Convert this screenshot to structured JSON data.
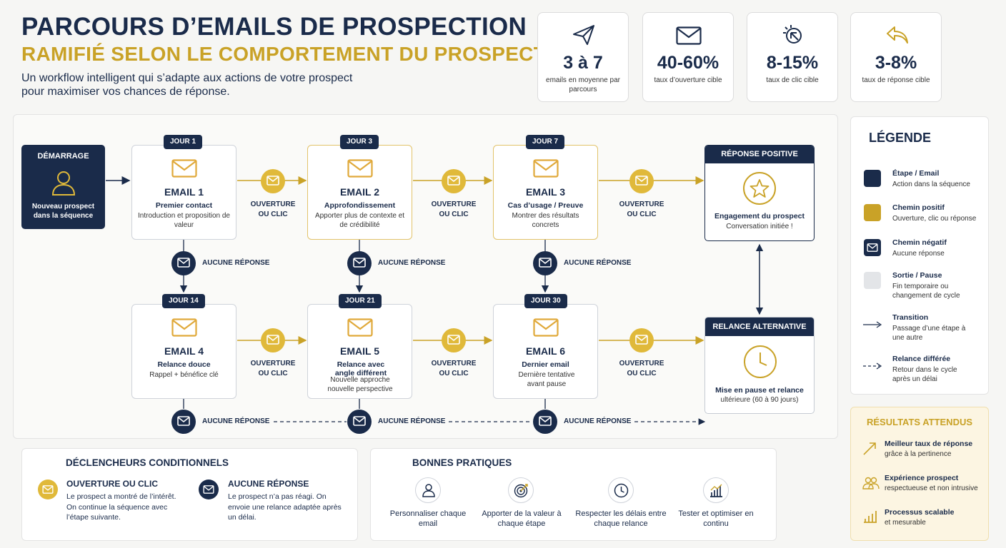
{
  "header": {
    "title_line1": "PARCOURS D’EMAILS DE PROSPECTION",
    "title_line2": "RAMIFIÉ SELON LE COMPORTEMENT DU PROSPECT",
    "subtitle": "Un workflow intelligent qui s’adapte aux actions de votre prospect pour maximiser vos chances de réponse."
  },
  "stats": [
    {
      "icon": "paper-plane-icon",
      "value": "3 à 7",
      "label": "emails en moyenne par parcours"
    },
    {
      "icon": "envelope-icon",
      "value": "40-60%",
      "label": "taux d’ouverture cible"
    },
    {
      "icon": "click-icon",
      "value": "8-15%",
      "label": "taux de clic cible"
    },
    {
      "icon": "reply-icon",
      "value": "3-8%",
      "label": "taux de réponse cible"
    }
  ],
  "start": {
    "label": "DÉMARRAGE",
    "desc": "Nouveau prospect dans la séquence"
  },
  "emails": [
    {
      "day": "JOUR 1",
      "title": "EMAIL 1",
      "subject": "Premier contact",
      "desc": "Introduction et proposition de valeur"
    },
    {
      "day": "JOUR 3",
      "title": "EMAIL 2",
      "subject": "Approfondissement",
      "desc": "Apporter plus de contexte et de crédibilité"
    },
    {
      "day": "JOUR 7",
      "title": "EMAIL 3",
      "subject": "Cas d’usage / Preuve",
      "desc": "Montrer des résultats concrets"
    },
    {
      "day": "JOUR 14",
      "title": "EMAIL 4",
      "subject": "Relance douce",
      "desc": "Rappel + bénéfice clé"
    },
    {
      "day": "JOUR 21",
      "title": "EMAIL 5",
      "subject": "Relance avec angle différent",
      "desc": "Nouvelle approche nouvelle perspective"
    },
    {
      "day": "JOUR 30",
      "title": "EMAIL 6",
      "subject": "Dernier email",
      "desc": "Dernière tentative avant pause"
    }
  ],
  "edge_labels": {
    "open": "OUVERTURE OU CLIC",
    "no_reply": "AUCUNE RÉPONSE"
  },
  "outcomes": {
    "positive": {
      "header": "RÉPONSE POSITIVE",
      "title": "Engagement du prospect",
      "desc": "Conversation initiée !"
    },
    "alternative": {
      "header": "RELANCE ALTERNATIVE",
      "title": "Mise en pause et relance",
      "desc": "ultérieure (60 à 90 jours)"
    }
  },
  "legend": {
    "title": "LÉGENDE",
    "items": [
      {
        "title": "Étape / Email",
        "desc": "Action dans la séquence",
        "color": "#1a2b4a"
      },
      {
        "title": "Chemin positif",
        "desc": "Ouverture, clic ou réponse",
        "color": "#c9a227"
      },
      {
        "title": "Chemin négatif",
        "desc": "Aucune réponse",
        "color": "#1a2b4a"
      },
      {
        "title": "Sortie / Pause",
        "desc": "Fin temporaire ou changement de cycle",
        "color": "#e3e5e8"
      },
      {
        "title": "Transition",
        "desc": "Passage d’une étape à une autre"
      },
      {
        "title": "Relance différée",
        "desc": "Retour dans le cycle après un délai"
      }
    ]
  },
  "results": {
    "title": "RÉSULTATS ATTENDUS",
    "items": [
      {
        "title": "Meilleur taux de réponse",
        "desc": "grâce à la pertinence"
      },
      {
        "title": "Expérience prospect",
        "desc": "respectueuse et non intrusive"
      },
      {
        "title": "Processus scalable",
        "desc": "et mesurable"
      }
    ]
  },
  "triggers": {
    "title": "DÉCLENCHEURS CONDITIONNELS",
    "items": [
      {
        "title": "OUVERTURE OU CLIC",
        "desc": "Le prospect a montré de l’intérêt. On continue la séquence avec l’étape suivante."
      },
      {
        "title": "AUCUNE RÉPONSE",
        "desc": "Le prospect n’a pas réagi. On envoie une relance adaptée après un délai."
      }
    ]
  },
  "practices": {
    "title": "BONNES PRATIQUES",
    "items": [
      {
        "icon": "user-icon",
        "label": "Personnaliser chaque email"
      },
      {
        "icon": "target-icon",
        "label": "Apporter de la valeur à chaque étape"
      },
      {
        "icon": "clock-icon",
        "label": "Respecter les délais entre chaque relance"
      },
      {
        "icon": "chart-icon",
        "label": "Tester et optimiser en continu"
      }
    ]
  },
  "colors": {
    "navy": "#1a2b4a",
    "gold": "#c9a227",
    "gold_circle": "#e0b93a"
  }
}
